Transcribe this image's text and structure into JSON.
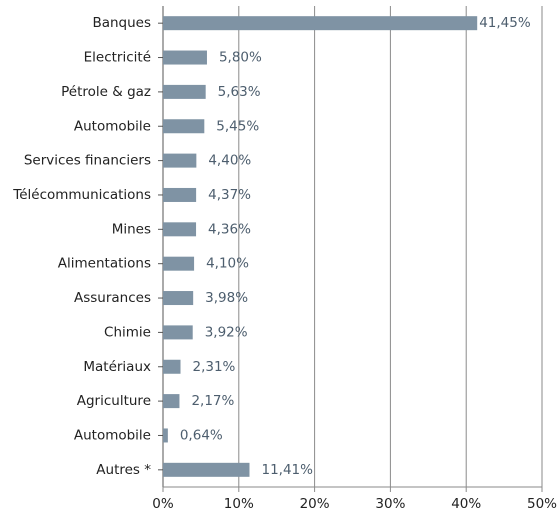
{
  "chart_data": {
    "type": "bar",
    "orientation": "horizontal",
    "categories": [
      "Banques",
      "Electricité",
      "Pétrole & gaz",
      "Automobile",
      "Services financiers",
      "Télécommunications",
      "Mines",
      "Alimentations",
      "Assurances",
      "Chimie",
      "Matériaux",
      "Agriculture",
      "Automobile",
      "Autres *"
    ],
    "values": [
      41.45,
      5.8,
      5.63,
      5.45,
      4.4,
      4.37,
      4.36,
      4.1,
      3.98,
      3.92,
      2.31,
      2.17,
      0.64,
      11.41
    ],
    "value_labels": [
      "41,45%",
      "5,80%",
      "5,63%",
      "5,45%",
      "4,40%",
      "4,37%",
      "4,36%",
      "4,10%",
      "3,98%",
      "3,92%",
      "2,31%",
      "2,17%",
      "0,64%",
      "11,41%"
    ],
    "color": "#7f93a4",
    "xlim": [
      0,
      50
    ],
    "xticks": [
      {
        "value": 0,
        "label": "0%"
      },
      {
        "value": 10,
        "label": "10%"
      },
      {
        "value": 20,
        "label": "20%"
      },
      {
        "value": 30,
        "label": "30%"
      },
      {
        "value": 40,
        "label": "40%"
      },
      {
        "value": 50,
        "label": "50%"
      }
    ],
    "grid": true
  }
}
